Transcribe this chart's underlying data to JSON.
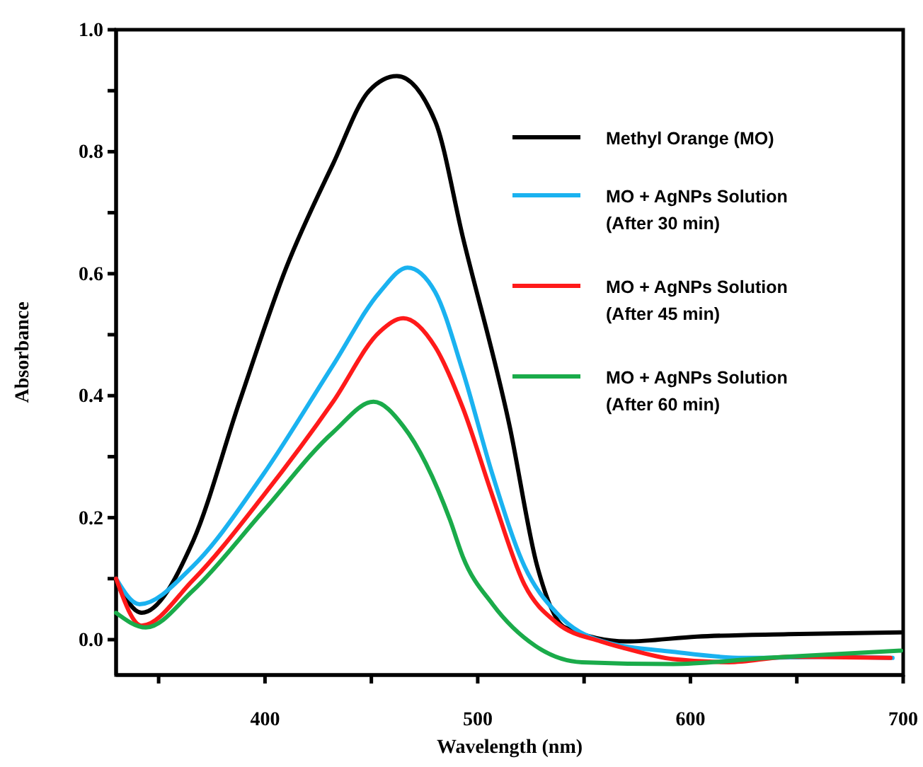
{
  "chart_data": {
    "type": "line",
    "xlabel": "Wavelength (nm)",
    "ylabel": "Absorbance",
    "xlim": [
      330,
      700
    ],
    "ylim": [
      -0.058,
      1.0
    ],
    "xticks": [
      {
        "value": 350,
        "label": null
      },
      400,
      {
        "value": 450,
        "label": null
      },
      500,
      {
        "value": 550,
        "label": null
      },
      600,
      {
        "value": 650,
        "label": null
      },
      700
    ],
    "yticks": [
      {
        "value": 0,
        "label": "0.0"
      },
      {
        "value": 0.1,
        "label": null
      },
      {
        "value": 0.2,
        "label": "0.2"
      },
      {
        "value": 0.3,
        "label": null
      },
      {
        "value": 0.4,
        "label": "0.4"
      },
      {
        "value": 0.5,
        "label": null
      },
      {
        "value": 0.6,
        "label": "0.6"
      },
      {
        "value": 0.7,
        "label": null
      },
      {
        "value": 0.8,
        "label": "0.8"
      },
      {
        "value": 0.9,
        "label": null
      },
      {
        "value": 1.0,
        "label": "1.0"
      }
    ],
    "legend": "top right",
    "grid": false,
    "line_style": "solid",
    "marker": "none",
    "series": [
      {
        "name": "Methyl Orange (MO)",
        "color": "#000000",
        "x": [
          330,
          342,
          366,
          388,
          410,
          432,
          449,
          462,
          480,
          493,
          515,
          528,
          541,
          570,
          603,
          646,
          699
        ],
        "values": [
          0.097,
          0.044,
          0.16,
          0.39,
          0.61,
          0.78,
          0.9,
          0.924,
          0.85,
          0.66,
          0.35,
          0.12,
          0.02,
          -0.003,
          0.005,
          0.009,
          0.012
        ]
      },
      {
        "name": "MO + AgNPs Solution (After 30 min)",
        "color": "#1ab2f0",
        "x": [
          330,
          341,
          366,
          399,
          432,
          454,
          467,
          480,
          493,
          507,
          522,
          537,
          559,
          592,
          625,
          669,
          695
        ],
        "values": [
          0.1,
          0.058,
          0.12,
          0.27,
          0.45,
          0.57,
          0.61,
          0.57,
          0.44,
          0.27,
          0.12,
          0.044,
          -0.003,
          -0.02,
          -0.03,
          -0.028,
          -0.03
        ]
      },
      {
        "name": "MO + AgNPs Solution (After 45 min)",
        "color": "#ff1a1a",
        "x": [
          330,
          342,
          366,
          399,
          432,
          454,
          465,
          480,
          493,
          507,
          522,
          537,
          558,
          569,
          592,
          618,
          647,
          694
        ],
        "values": [
          0.1,
          0.023,
          0.097,
          0.235,
          0.39,
          0.505,
          0.527,
          0.48,
          0.38,
          0.235,
          0.09,
          0.028,
          -0.003,
          -0.014,
          -0.032,
          -0.037,
          -0.028,
          -0.03
        ]
      },
      {
        "name": "MO + AgNPs Solution (After 60 min)",
        "color": "#1aab4a",
        "x": [
          330,
          344,
          366,
          399,
          432,
          451,
          465,
          487,
          493,
          507,
          527,
          549,
          592,
          636,
          699
        ],
        "values": [
          0.044,
          0.02,
          0.08,
          0.21,
          0.34,
          0.39,
          0.35,
          0.196,
          0.136,
          0.058,
          -0.01,
          -0.037,
          -0.04,
          -0.03,
          -0.018
        ]
      }
    ]
  }
}
